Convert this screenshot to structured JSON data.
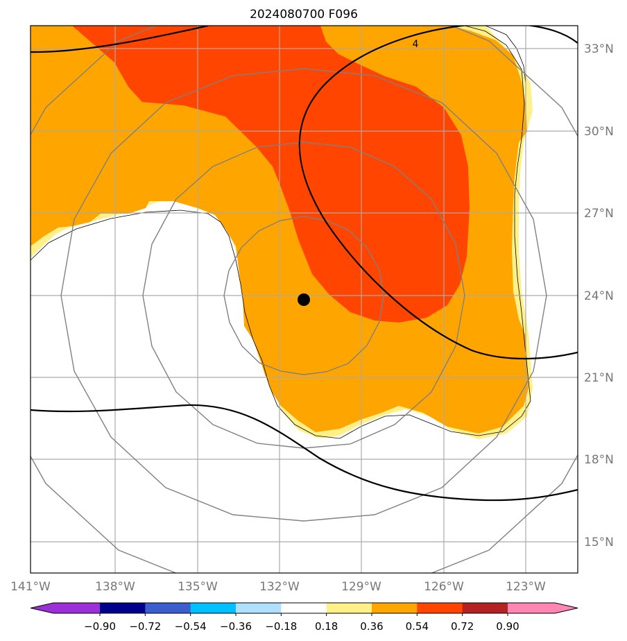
{
  "title": "2024080700 F096",
  "chart_data": {
    "type": "map",
    "title": "2024080700 F096",
    "projection": "PlateCarree",
    "extent": {
      "lon": [
        -141,
        -121
      ],
      "lat": [
        14,
        34
      ]
    },
    "lon_ticks": [
      {
        "value": -141,
        "label": "141°W"
      },
      {
        "value": -138,
        "label": "138°W"
      },
      {
        "value": -135,
        "label": "135°W"
      },
      {
        "value": -132,
        "label": "132°W"
      },
      {
        "value": -129,
        "label": "129°W"
      },
      {
        "value": -126,
        "label": "126°W"
      },
      {
        "value": -123,
        "label": "123°W"
      }
    ],
    "lat_ticks": [
      {
        "value": 15,
        "label": "15°N"
      },
      {
        "value": 18,
        "label": "18°N"
      },
      {
        "value": 21,
        "label": "21°N"
      },
      {
        "value": 24,
        "label": "24°N"
      },
      {
        "value": 27,
        "label": "27°N"
      },
      {
        "value": 30,
        "label": "30°N"
      },
      {
        "value": 33,
        "label": "33°N"
      }
    ],
    "storm_center": {
      "lon": -131.0,
      "lat": 23.8
    },
    "range_rings": {
      "center": {
        "lon": -131.0,
        "lat": 24.0
      },
      "radii_deg": [
        3,
        6,
        9
      ]
    },
    "contour_label": "4",
    "colorbar": {
      "boundaries": [
        -0.9,
        -0.72,
        -0.54,
        -0.36,
        -0.18,
        0.18,
        0.36,
        0.54,
        0.72,
        0.9
      ],
      "tick_labels": [
        "−0.90",
        "−0.72",
        "−0.54",
        "−0.36",
        "−0.18",
        "0.18",
        "0.36",
        "0.54",
        "0.72",
        "0.90"
      ],
      "under_color": "#9b30d9",
      "over_color": "#ff85b3",
      "colors": [
        "#00008b",
        "#3a5fcd",
        "#00bfff",
        "#b0e0ff",
        "#ffffff",
        "#fff08a",
        "#ffa500",
        "#ff4500",
        "#b22222"
      ],
      "extend": "both"
    },
    "filled_regions": [
      {
        "level": "0.18-0.36",
        "color": "#fff08a"
      },
      {
        "level": "0.36-0.54",
        "color": "#ffa500"
      },
      {
        "level": "0.54-0.72",
        "color": "#ff4500"
      }
    ]
  },
  "colors": {
    "grid": "#aaaaaa",
    "ring": "#808080",
    "contour": "#000000",
    "tick_label": "#777777"
  }
}
